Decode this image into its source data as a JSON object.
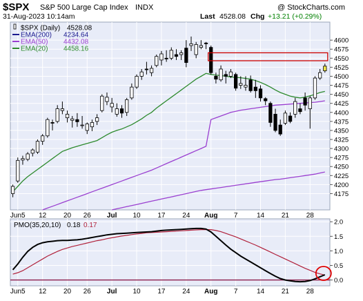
{
  "header": {
    "symbol": "$SPX",
    "name": "S&P 500 Large Cap Index",
    "exchange": "INDX",
    "watermark": "@ StockCharts.com",
    "datetime": "31-Aug-2023 10:14am",
    "last_label": "Last",
    "last_value": "4528.08",
    "chg_label": "Chg",
    "chg_value": "+13.21 (+0.29%)",
    "pmo_label": "PMO(35,20,10)",
    "pmo_value": "0.18",
    "pmo_signal_value": "0.17"
  },
  "chart_data": [
    {
      "type": "candlestick",
      "ylim": [
        4130,
        4650
      ],
      "y_ticks": [
        4175,
        4200,
        4225,
        4250,
        4275,
        4300,
        4325,
        4350,
        4375,
        4400,
        4425,
        4450,
        4475,
        4500,
        4525,
        4550,
        4575,
        4600
      ],
      "x_tick_labels": [
        "Jun5",
        "12",
        "20",
        "26",
        "Jul",
        "10",
        "17",
        "24",
        "Aug",
        "7",
        "14",
        "21",
        "28"
      ],
      "x_tick_index": [
        1,
        6,
        11,
        15,
        20,
        25,
        30,
        35,
        40,
        45,
        50,
        55,
        60
      ],
      "legend": [
        {
          "name": "$SPX (Daily)",
          "value": "4528.08",
          "color": "#000000"
        },
        {
          "name": "EMA(200)",
          "value": "4234.64",
          "color": "#1b1b8f"
        },
        {
          "name": "EMA(50)",
          "value": "4432.08",
          "color": "#9a3fd0"
        },
        {
          "name": "EMA(20)",
          "value": "4458.16",
          "color": "#2d8a2d"
        }
      ],
      "resistance_zone": {
        "x_range": [
          40,
          63
        ],
        "y_range": [
          4543,
          4565
        ],
        "color": "#cc0000"
      },
      "ohlc": [
        [
          4175,
          4200,
          4165,
          4195
        ],
        [
          4210,
          4275,
          4205,
          4267
        ],
        [
          4268,
          4280,
          4255,
          4272
        ],
        [
          4270,
          4290,
          4265,
          4285
        ],
        [
          4287,
          4300,
          4278,
          4296
        ],
        [
          4290,
          4325,
          4285,
          4320
        ],
        [
          4320,
          4340,
          4310,
          4335
        ],
        [
          4335,
          4385,
          4330,
          4380
        ],
        [
          4372,
          4380,
          4350,
          4370
        ],
        [
          4375,
          4420,
          4370,
          4410
        ],
        [
          4405,
          4430,
          4395,
          4410
        ],
        [
          4385,
          4405,
          4372,
          4395
        ],
        [
          4378,
          4390,
          4358,
          4382
        ],
        [
          4380,
          4398,
          4360,
          4374
        ],
        [
          4365,
          4390,
          4355,
          4365
        ],
        [
          4350,
          4372,
          4340,
          4368
        ],
        [
          4360,
          4380,
          4348,
          4372
        ],
        [
          4375,
          4395,
          4365,
          4385
        ],
        [
          4405,
          4450,
          4400,
          4445
        ],
        [
          4430,
          4455,
          4420,
          4442
        ],
        [
          4415,
          4440,
          4400,
          4425
        ],
        [
          4395,
          4425,
          4388,
          4410
        ],
        [
          4410,
          4420,
          4385,
          4398
        ],
        [
          4400,
          4440,
          4390,
          4435
        ],
        [
          4440,
          4480,
          4435,
          4470
        ],
        [
          4470,
          4505,
          4465,
          4500
        ],
        [
          4500,
          4520,
          4490,
          4512
        ],
        [
          4520,
          4540,
          4505,
          4518
        ],
        [
          4510,
          4530,
          4500,
          4522
        ],
        [
          4530,
          4560,
          4525,
          4555
        ],
        [
          4545,
          4570,
          4530,
          4562
        ],
        [
          4550,
          4572,
          4540,
          4548
        ],
        [
          4550,
          4580,
          4545,
          4572
        ],
        [
          4560,
          4575,
          4545,
          4555
        ],
        [
          4560,
          4572,
          4545,
          4565
        ],
        [
          4578,
          4600,
          4525,
          4538
        ],
        [
          4585,
          4610,
          4570,
          4590
        ],
        [
          4560,
          4595,
          4550,
          4588
        ],
        [
          4580,
          4600,
          4575,
          4585
        ],
        [
          4592,
          4595,
          4575,
          4590
        ],
        [
          4580,
          4585,
          4505,
          4510
        ],
        [
          4500,
          4510,
          4480,
          4492
        ],
        [
          4490,
          4530,
          4485,
          4520
        ],
        [
          4505,
          4515,
          4480,
          4500
        ],
        [
          4500,
          4520,
          4495,
          4512
        ],
        [
          4505,
          4510,
          4460,
          4467
        ],
        [
          4475,
          4500,
          4465,
          4480
        ],
        [
          4470,
          4500,
          4460,
          4475
        ],
        [
          4490,
          4502,
          4455,
          4460
        ],
        [
          4470,
          4490,
          4440,
          4460
        ],
        [
          4465,
          4475,
          4430,
          4440
        ],
        [
          4438,
          4442,
          4420,
          4432
        ],
        [
          4425,
          4430,
          4360,
          4372
        ],
        [
          4395,
          4410,
          4345,
          4350
        ],
        [
          4365,
          4380,
          4335,
          4340
        ],
        [
          4370,
          4405,
          4365,
          4398
        ],
        [
          4390,
          4400,
          4370,
          4375
        ],
        [
          4395,
          4440,
          4385,
          4430
        ],
        [
          4410,
          4425,
          4395,
          4402
        ],
        [
          4440,
          4455,
          4405,
          4420
        ],
        [
          4410,
          4445,
          4355,
          4440
        ],
        [
          4440,
          4500,
          4435,
          4495
        ],
        [
          4495,
          4520,
          4490,
          4510
        ],
        [
          4515,
          4535,
          4510,
          4528
        ]
      ],
      "ema200": [
        4070,
        4073,
        4076,
        4079,
        4082,
        4085,
        4088,
        4091,
        4094,
        4097,
        4100,
        4103,
        4106,
        4109,
        4112,
        4115,
        4118,
        4121,
        4124,
        4127,
        4130,
        4133,
        4136,
        4139,
        4142,
        4145,
        4148,
        4151,
        4154,
        4157,
        4160,
        4163,
        4166,
        4169,
        4172,
        4175,
        4178,
        4181,
        4184,
        4186,
        4188,
        4190,
        4192,
        4194,
        4196,
        4198,
        4200,
        4202,
        4204,
        4206,
        4208,
        4210,
        4212,
        4214,
        4215,
        4217,
        4219,
        4221,
        4223,
        4225,
        4227,
        4229,
        4232,
        4235
      ],
      "ema50": [
        4100,
        4105,
        4110,
        4115,
        4120,
        4125,
        4130,
        4135,
        4140,
        4145,
        4150,
        4155,
        4160,
        4165,
        4170,
        4175,
        4180,
        4185,
        4190,
        4195,
        4200,
        4205,
        4210,
        4215,
        4220,
        4225,
        4230,
        4235,
        4240,
        4246,
        4252,
        4258,
        4264,
        4270,
        4276,
        4282,
        4288,
        4294,
        4300,
        4306,
        4380,
        4385,
        4390,
        4395,
        4400,
        4403,
        4406,
        4408,
        4410,
        4412,
        4414,
        4416,
        4418,
        4420,
        4421,
        4422,
        4423,
        4424,
        4425,
        4426,
        4427,
        4428,
        4430,
        4432
      ],
      "ema20": [
        4180,
        4195,
        4210,
        4222,
        4232,
        4242,
        4252,
        4262,
        4272,
        4282,
        4292,
        4297,
        4302,
        4306,
        4310,
        4314,
        4318,
        4322,
        4330,
        4338,
        4345,
        4350,
        4354,
        4360,
        4366,
        4374,
        4382,
        4392,
        4400,
        4412,
        4422,
        4432,
        4442,
        4452,
        4462,
        4472,
        4482,
        4492,
        4500,
        4508,
        4505,
        4503,
        4502,
        4500,
        4498,
        4497,
        4496,
        4494,
        4492,
        4488,
        4483,
        4477,
        4470,
        4462,
        4455,
        4450,
        4445,
        4442,
        4440,
        4442,
        4446,
        4450,
        4455,
        4458
      ]
    },
    {
      "type": "line",
      "ylim": [
        -0.2,
        2.1
      ],
      "y_ticks": [
        0.0,
        0.5,
        1.0,
        1.5,
        2.0
      ],
      "y_tick_labels": [
        "0.0",
        "0.5",
        "1.0",
        "1.5",
        "2.0"
      ],
      "x_tick_labels": [
        "Jun5",
        "12",
        "20",
        "26",
        "Jul",
        "10",
        "17",
        "24",
        "Aug",
        "7",
        "14",
        "21",
        "28"
      ],
      "x_tick_index": [
        1,
        6,
        11,
        15,
        20,
        25,
        30,
        35,
        40,
        45,
        50,
        55,
        60
      ],
      "zero_line_color": "#8b1a4a",
      "highlight_circle_index": 63,
      "series": [
        {
          "name": "PMO(35,20,10)",
          "color": "#000000",
          "values": [
            0.35,
            0.55,
            0.78,
            0.98,
            1.12,
            1.22,
            1.28,
            1.31,
            1.33,
            1.35,
            1.36,
            1.36,
            1.37,
            1.38,
            1.4,
            1.43,
            1.46,
            1.49,
            1.52,
            1.55,
            1.57,
            1.59,
            1.6,
            1.61,
            1.62,
            1.63,
            1.64,
            1.65,
            1.66,
            1.68,
            1.7,
            1.71,
            1.72,
            1.73,
            1.74,
            1.75,
            1.76,
            1.77,
            1.77,
            1.75,
            1.65,
            1.5,
            1.35,
            1.2,
            1.06,
            0.94,
            0.82,
            0.72,
            0.62,
            0.52,
            0.42,
            0.32,
            0.22,
            0.13,
            0.05,
            0.0,
            -0.03,
            -0.05,
            -0.06,
            -0.05,
            -0.02,
            0.04,
            0.11,
            0.18
          ]
        },
        {
          "name": "Signal",
          "color": "#b0203a",
          "values": [
            0.2,
            0.25,
            0.32,
            0.42,
            0.52,
            0.62,
            0.72,
            0.82,
            0.9,
            0.98,
            1.05,
            1.1,
            1.15,
            1.19,
            1.23,
            1.27,
            1.31,
            1.35,
            1.38,
            1.42,
            1.45,
            1.48,
            1.51,
            1.53,
            1.56,
            1.58,
            1.6,
            1.62,
            1.63,
            1.64,
            1.65,
            1.66,
            1.67,
            1.68,
            1.69,
            1.7,
            1.71,
            1.72,
            1.73,
            1.73,
            1.73,
            1.7,
            1.66,
            1.6,
            1.54,
            1.48,
            1.41,
            1.34,
            1.27,
            1.2,
            1.12,
            1.04,
            0.96,
            0.88,
            0.8,
            0.72,
            0.64,
            0.56,
            0.48,
            0.4,
            0.33,
            0.26,
            0.21,
            0.17
          ]
        }
      ]
    }
  ],
  "colors": {
    "plot_bg": "#e8ecf8",
    "grid": "#ffffff",
    "frame": "#9aa4b8",
    "candle_up_fill": "#ffffff",
    "candle_down_fill": "#000000",
    "last_candle_fill": "#f1e84a",
    "chg_up": "#008000"
  }
}
